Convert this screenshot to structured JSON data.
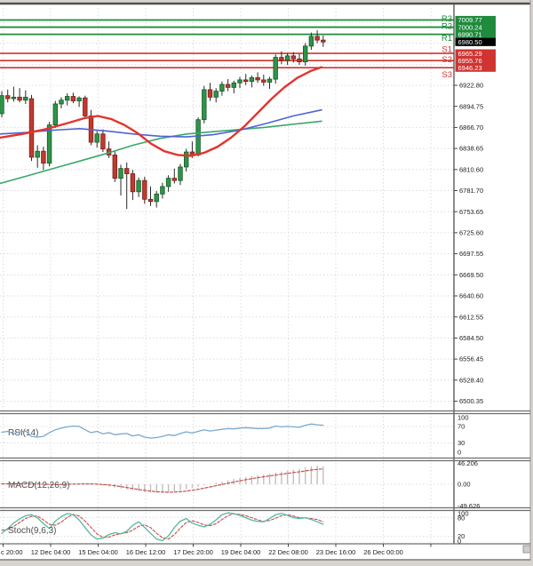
{
  "colors": {
    "background": "#ffffff",
    "chrome": "#d6d3ce",
    "border_dark": "#4f4f4f",
    "separator": "#6e6e6e",
    "grid": "#dcdcdc",
    "axis_text": "#1c1c1c",
    "resistance_green": "#1f8b3d",
    "support_red": "#d03431",
    "current_price_box": "#000000",
    "candle_up_fill": "#2e9448",
    "candle_up_stroke": "#145a28",
    "candle_down_fill": "#c03a2e",
    "candle_down_stroke": "#7a1f18",
    "wick": "#2a2a2a",
    "ma_red": "#e3342f",
    "ma_blue": "#4f63d2",
    "ma_green": "#3aa869",
    "rsi_line": "#7aa9cc",
    "macd_hist": "#c6bcbc",
    "macd_signal": "#c0504d",
    "stoch_k": "#53b8a0",
    "stoch_d": "#c0504d",
    "indicator_label": "#4d4d4d"
  },
  "chart_data": {
    "type": "candlestick",
    "levels": {
      "resistance": [
        {
          "label": "R3",
          "value": "7009.77"
        },
        {
          "label": "R2",
          "value": "7000.24"
        },
        {
          "label": "R1",
          "value": "6990.71"
        }
      ],
      "support": [
        {
          "label": "S1",
          "value": "6965.29"
        },
        {
          "label": "S2",
          "value": "6955.76"
        },
        {
          "label": "S3",
          "value": "6946.23"
        }
      ]
    },
    "price_axis": {
      "current": "6980.50",
      "gray_labels": [
        "6922.80",
        "6894.75",
        "6866.70",
        "6838.65",
        "6810.60",
        "6781.70",
        "6753.65",
        "6725.60",
        "6697.55",
        "6669.50",
        "6640.60",
        "6612.55",
        "6584.50",
        "6556.45",
        "6528.40",
        "6500.35"
      ]
    },
    "time_axis": [
      "c 20:00",
      "12 Dec 04:00",
      "15 Dec 04:00",
      "16 Dec 12:00",
      "17 Dec 20:00",
      "19 Dec 04:00",
      "22 Dec 08:00",
      "23 Dec 16:00",
      "26 Dec 00:00"
    ],
    "candles": [
      [
        6885,
        6915,
        6880,
        6909
      ],
      [
        6909,
        6917,
        6900,
        6905
      ],
      [
        6905,
        6921,
        6901,
        6907
      ],
      [
        6907,
        6919,
        6900,
        6903
      ],
      [
        6903,
        6916,
        6898,
        6907
      ],
      [
        6905,
        6910,
        6822,
        6827
      ],
      [
        6827,
        6843,
        6813,
        6835
      ],
      [
        6835,
        6841,
        6810,
        6819
      ],
      [
        6819,
        6874,
        6815,
        6870
      ],
      [
        6870,
        6902,
        6866,
        6898
      ],
      [
        6898,
        6907,
        6892,
        6903
      ],
      [
        6903,
        6912,
        6896,
        6908
      ],
      [
        6908,
        6913,
        6899,
        6902
      ],
      [
        6902,
        6908,
        6894,
        6906
      ],
      [
        6906,
        6909,
        6878,
        6882
      ],
      [
        6882,
        6890,
        6843,
        6847
      ],
      [
        6847,
        6862,
        6840,
        6858
      ],
      [
        6858,
        6864,
        6834,
        6838
      ],
      [
        6838,
        6848,
        6826,
        6830
      ],
      [
        6830,
        6836,
        6794,
        6799
      ],
      [
        6799,
        6817,
        6776,
        6812
      ],
      [
        6812,
        6820,
        6758,
        6805
      ],
      [
        6805,
        6810,
        6770,
        6781
      ],
      [
        6781,
        6800,
        6774,
        6796
      ],
      [
        6796,
        6801,
        6765,
        6771
      ],
      [
        6771,
        6788,
        6762,
        6768
      ],
      [
        6768,
        6782,
        6760,
        6778
      ],
      [
        6778,
        6793,
        6772,
        6788
      ],
      [
        6788,
        6803,
        6781,
        6799
      ],
      [
        6799,
        6812,
        6792,
        6796
      ],
      [
        6796,
        6818,
        6790,
        6814
      ],
      [
        6814,
        6838,
        6808,
        6834
      ],
      [
        6834,
        6848,
        6826,
        6830
      ],
      [
        6830,
        6880,
        6828,
        6877
      ],
      [
        6877,
        6922,
        6872,
        6917
      ],
      [
        6917,
        6926,
        6902,
        6907
      ],
      [
        6907,
        6919,
        6900,
        6915
      ],
      [
        6915,
        6928,
        6909,
        6924
      ],
      [
        6924,
        6931,
        6915,
        6920
      ],
      [
        6920,
        6929,
        6912,
        6926
      ],
      [
        6926,
        6934,
        6919,
        6930
      ],
      [
        6930,
        6938,
        6923,
        6928
      ],
      [
        6928,
        6936,
        6920,
        6933
      ],
      [
        6933,
        6940,
        6926,
        6930
      ],
      [
        6930,
        6937,
        6922,
        6927
      ],
      [
        6927,
        6934,
        6918,
        6931
      ],
      [
        6931,
        6964,
        6925,
        6960
      ],
      [
        6960,
        6968,
        6951,
        6956
      ],
      [
        6956,
        6966,
        6950,
        6962
      ],
      [
        6962,
        6967,
        6953,
        6958
      ],
      [
        6958,
        6965,
        6950,
        6954
      ],
      [
        6954,
        6979,
        6949,
        6975
      ],
      [
        6975,
        6993,
        6970,
        6988
      ],
      [
        6988,
        6996,
        6979,
        6983
      ],
      [
        6983,
        6989,
        6974,
        6980.5
      ]
    ],
    "ma": {
      "red": [
        [
          0,
          6853
        ],
        [
          25,
          6858
        ],
        [
          50,
          6864
        ],
        [
          75,
          6872
        ],
        [
          95,
          6879
        ],
        [
          110,
          6882
        ],
        [
          125,
          6878
        ],
        [
          140,
          6870
        ],
        [
          155,
          6859
        ],
        [
          170,
          6845
        ],
        [
          185,
          6835
        ],
        [
          200,
          6830
        ],
        [
          215,
          6829
        ],
        [
          230,
          6833
        ],
        [
          245,
          6841
        ],
        [
          260,
          6853
        ],
        [
          275,
          6868
        ],
        [
          290,
          6886
        ],
        [
          305,
          6904
        ],
        [
          320,
          6920
        ],
        [
          335,
          6933
        ],
        [
          350,
          6942
        ],
        [
          362,
          6947
        ]
      ],
      "blue": [
        [
          0,
          6858
        ],
        [
          30,
          6860
        ],
        [
          60,
          6863
        ],
        [
          90,
          6865
        ],
        [
          120,
          6862
        ],
        [
          150,
          6858
        ],
        [
          180,
          6855
        ],
        [
          210,
          6854
        ],
        [
          240,
          6857
        ],
        [
          270,
          6863
        ],
        [
          300,
          6872
        ],
        [
          330,
          6882
        ],
        [
          362,
          6890
        ]
      ],
      "green": [
        [
          0,
          6792
        ],
        [
          30,
          6802
        ],
        [
          60,
          6812
        ],
        [
          90,
          6822
        ],
        [
          120,
          6832
        ],
        [
          150,
          6843
        ],
        [
          180,
          6852
        ],
        [
          210,
          6858
        ],
        [
          240,
          6861
        ],
        [
          270,
          6864
        ],
        [
          300,
          6867
        ],
        [
          330,
          6871
        ],
        [
          362,
          6875
        ]
      ]
    },
    "rsi": {
      "label": "RSI(14)",
      "scale": [
        "100",
        "70",
        "30",
        "0"
      ],
      "values": [
        56,
        58,
        53,
        57,
        59,
        46,
        44,
        46,
        55,
        62,
        66,
        69,
        71,
        70,
        62,
        55,
        58,
        52,
        55,
        50,
        52,
        53,
        47,
        50,
        44,
        42,
        43,
        46,
        50,
        48,
        53,
        57,
        54,
        58,
        62,
        59,
        61,
        63,
        65,
        64,
        66,
        67,
        66,
        65,
        65,
        66,
        71,
        69,
        70,
        69,
        68,
        73,
        76,
        74,
        73
      ]
    },
    "macd": {
      "label": "MACD(12,26,9)",
      "scale": [
        "46.206",
        "0.00",
        "-49.626"
      ],
      "hist": [
        0.5,
        0.8,
        1,
        0.8,
        0.5,
        0,
        -0.5,
        -1,
        -0.8,
        -0.5,
        0,
        0.5,
        0.8,
        1,
        0.5,
        -0.5,
        -1.5,
        -3,
        -4.5,
        -6.5,
        -8.5,
        -10.5,
        -12.5,
        -14,
        -15.5,
        -17,
        -17.5,
        -17,
        -16,
        -14.5,
        -12.5,
        -10,
        -7.5,
        -5,
        -2,
        0.5,
        3,
        5.5,
        8,
        10.5,
        13,
        15,
        17,
        18.5,
        20,
        21.5,
        24,
        26,
        28,
        30,
        31.5,
        34,
        36.5,
        38,
        36.5
      ],
      "signal": [
        1,
        1,
        1,
        1,
        1,
        0.8,
        0.5,
        0,
        -0.3,
        -0.5,
        -0.3,
        0,
        0.3,
        0.6,
        0.8,
        0.7,
        0.3,
        -0.5,
        -1.5,
        -3,
        -4.8,
        -6.8,
        -8.8,
        -10.8,
        -12.5,
        -14,
        -15.2,
        -16,
        -16.3,
        -16,
        -15.2,
        -14,
        -12.3,
        -10.3,
        -8,
        -5.5,
        -3,
        -0.5,
        2,
        4.5,
        7,
        9.3,
        11.5,
        13.5,
        15.3,
        17,
        18.8,
        20.5,
        22.3,
        24,
        25.5,
        27.3,
        29,
        30.5,
        31.5
      ]
    },
    "stoch": {
      "label": "Stoch(9,6,3)",
      "scale": [
        "100",
        "80",
        "20",
        "0"
      ],
      "k": [
        30,
        45,
        62,
        75,
        85,
        88,
        78,
        60,
        45,
        68,
        82,
        92,
        88,
        72,
        48,
        25,
        12,
        15,
        26,
        32,
        28,
        36,
        55,
        66,
        48,
        30,
        12,
        7,
        22,
        48,
        68,
        76,
        62,
        55,
        50,
        58,
        72,
        88,
        94,
        91,
        86,
        79,
        71,
        67,
        66,
        76,
        88,
        92,
        86,
        79,
        76,
        79,
        73,
        66,
        58
      ],
      "d": [
        40,
        42,
        52,
        64,
        76,
        83,
        84,
        72,
        58,
        55,
        65,
        80,
        89,
        84,
        68,
        48,
        28,
        17,
        18,
        25,
        29,
        32,
        40,
        52,
        56,
        48,
        30,
        16,
        12,
        26,
        46,
        64,
        69,
        64,
        56,
        54,
        60,
        73,
        85,
        91,
        89,
        85,
        79,
        72,
        67,
        70,
        77,
        85,
        88,
        84,
        79,
        78,
        76,
        73,
        66
      ]
    }
  }
}
